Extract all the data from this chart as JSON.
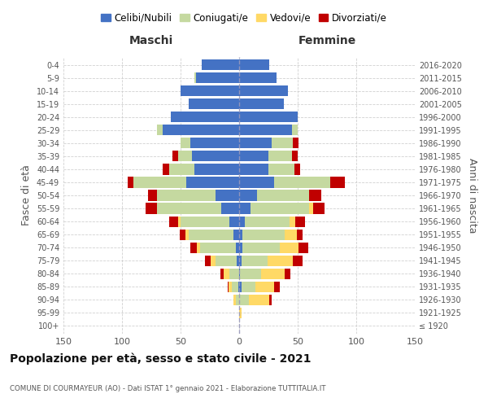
{
  "age_groups": [
    "100+",
    "95-99",
    "90-94",
    "85-89",
    "80-84",
    "75-79",
    "70-74",
    "65-69",
    "60-64",
    "55-59",
    "50-54",
    "45-49",
    "40-44",
    "35-39",
    "30-34",
    "25-29",
    "20-24",
    "15-19",
    "10-14",
    "5-9",
    "0-4"
  ],
  "birth_years": [
    "≤ 1920",
    "1921-1925",
    "1926-1930",
    "1931-1935",
    "1936-1940",
    "1941-1945",
    "1946-1950",
    "1951-1955",
    "1956-1960",
    "1961-1965",
    "1966-1970",
    "1971-1975",
    "1976-1980",
    "1981-1985",
    "1986-1990",
    "1991-1995",
    "1996-2000",
    "2001-2005",
    "2006-2010",
    "2011-2015",
    "2016-2020"
  ],
  "m_cel": [
    0,
    0,
    0,
    1,
    0,
    2,
    3,
    5,
    8,
    15,
    20,
    45,
    38,
    40,
    42,
    65,
    58,
    43,
    50,
    37,
    32
  ],
  "m_con": [
    0,
    0,
    3,
    5,
    8,
    18,
    30,
    38,
    42,
    55,
    50,
    45,
    22,
    12,
    8,
    5,
    0,
    0,
    0,
    1,
    0
  ],
  "m_ved": [
    0,
    0,
    2,
    3,
    5,
    4,
    3,
    3,
    2,
    0,
    0,
    0,
    0,
    0,
    0,
    0,
    0,
    0,
    0,
    0,
    0
  ],
  "m_div": [
    0,
    0,
    0,
    1,
    3,
    5,
    6,
    5,
    8,
    10,
    8,
    5,
    5,
    5,
    0,
    0,
    0,
    0,
    0,
    0,
    0
  ],
  "f_nub": [
    0,
    0,
    0,
    2,
    1,
    2,
    3,
    3,
    5,
    10,
    15,
    30,
    25,
    25,
    28,
    45,
    50,
    38,
    42,
    32,
    26
  ],
  "f_con": [
    0,
    0,
    8,
    12,
    18,
    22,
    32,
    36,
    38,
    50,
    45,
    48,
    22,
    20,
    18,
    5,
    0,
    0,
    0,
    0,
    0
  ],
  "f_ved": [
    0,
    2,
    18,
    16,
    20,
    22,
    16,
    10,
    5,
    3,
    0,
    0,
    0,
    0,
    0,
    0,
    0,
    0,
    0,
    0,
    0
  ],
  "f_div": [
    0,
    0,
    2,
    5,
    5,
    8,
    8,
    5,
    8,
    10,
    10,
    12,
    5,
    5,
    5,
    0,
    0,
    0,
    0,
    0,
    0
  ],
  "colors": {
    "celibi": "#4472C4",
    "coniugati": "#c5d9a0",
    "vedovi": "#FFD966",
    "divorziati": "#C00000"
  },
  "legend_labels": [
    "Celibi/Nubili",
    "Coniugati/e",
    "Vedovi/e",
    "Divorziati/e"
  ],
  "title": "Popolazione per età, sesso e stato civile - 2021",
  "subtitle": "COMUNE DI COURMAYEUR (AO) - Dati ISTAT 1° gennaio 2021 - Elaborazione TUTTITALIA.IT",
  "label_maschi": "Maschi",
  "label_femmine": "Femmine",
  "ylabel_left": "Fasce di età",
  "ylabel_right": "Anni di nascita",
  "xlim": 150,
  "bg_color": "#ffffff",
  "grid_color": "#cccccc"
}
